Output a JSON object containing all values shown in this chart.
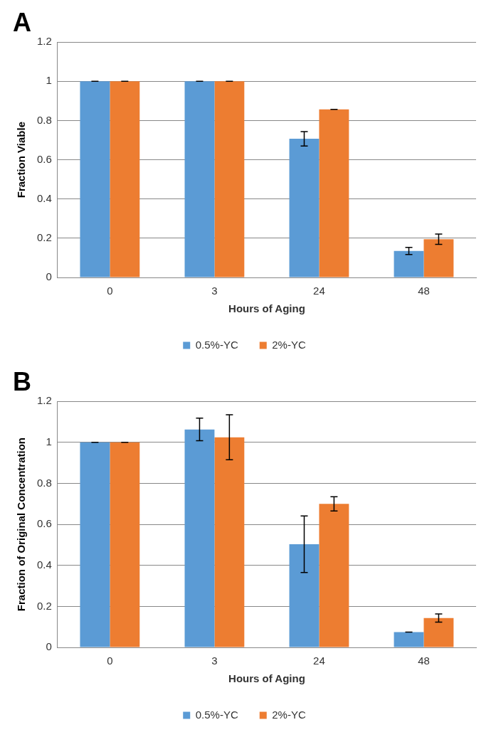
{
  "chart_data": [
    {
      "type": "bar",
      "title": "A",
      "categories": [
        "0",
        "3",
        "24",
        "48"
      ],
      "xlabel": "Hours of Aging",
      "ylabel": "Fraction Viable",
      "ylim": [
        0,
        1.2
      ],
      "yticks": [
        0,
        0.2,
        0.4,
        0.6,
        0.8,
        1,
        1.2
      ],
      "grid": "y",
      "legend": "bottom",
      "series": [
        {
          "name": "0.5%-YC",
          "color": "#5b9bd5",
          "values": [
            1,
            1,
            0.707,
            0.135
          ],
          "errors": [
            0,
            0,
            0.037,
            0.018
          ]
        },
        {
          "name": "2%-YC",
          "color": "#ed7d31",
          "values": [
            1,
            1,
            0.857,
            0.195
          ],
          "errors": [
            0,
            0,
            0,
            0.026
          ]
        }
      ]
    },
    {
      "type": "bar",
      "title": "B",
      "categories": [
        "0",
        "3",
        "24",
        "48"
      ],
      "xlabel": "Hours of Aging",
      "ylabel": "Fraction of Original Concentration",
      "ylim": [
        0,
        1.2
      ],
      "yticks": [
        0,
        0.2,
        0.4,
        0.6,
        0.8,
        1,
        1.2
      ],
      "grid": "y",
      "legend": "bottom",
      "series": [
        {
          "name": "0.5%-YC",
          "color": "#5b9bd5",
          "values": [
            1,
            1.063,
            0.503,
            0.075
          ],
          "errors": [
            0,
            0.055,
            0.138,
            0
          ]
        },
        {
          "name": "2%-YC",
          "color": "#ed7d31",
          "values": [
            1,
            1.025,
            0.7,
            0.143
          ],
          "errors": [
            0,
            0.11,
            0.035,
            0.02
          ]
        }
      ]
    }
  ]
}
